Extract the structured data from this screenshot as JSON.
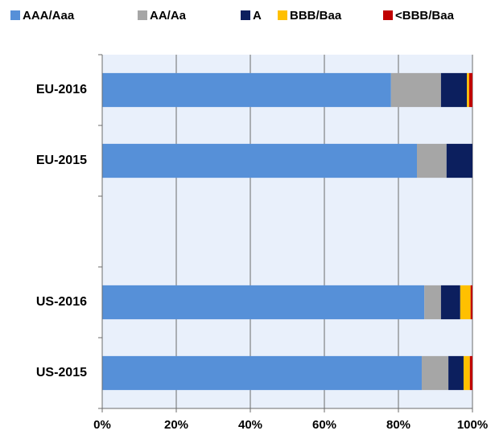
{
  "chart_data": {
    "type": "stacked-barh",
    "categories": [
      "EU-2016",
      "EU-2015",
      null,
      "US-2016",
      "US-2015"
    ],
    "series": [
      {
        "name": "AAA/Aaa",
        "color": "#5690d8",
        "values": [
          78,
          85,
          null,
          87,
          86.3
        ]
      },
      {
        "name": "AA/Aa",
        "color": "#a6a6a6",
        "values": [
          13.5,
          8,
          null,
          4.5,
          7.2
        ]
      },
      {
        "name": "A",
        "color": "#0c1f5e",
        "values": [
          7,
          7,
          null,
          5.2,
          4.1
        ]
      },
      {
        "name": "BBB/Baa",
        "color": "#ffc000",
        "values": [
          0.6,
          0,
          null,
          2.8,
          1.7
        ]
      },
      {
        "name": "<BBB/Baa",
        "color": "#c00000",
        "values": [
          0.9,
          0,
          null,
          0.5,
          0.7
        ]
      }
    ],
    "xlim": [
      0,
      100
    ],
    "xticks": [
      {
        "value": 0,
        "label": "0%"
      },
      {
        "value": 20,
        "label": "20%"
      },
      {
        "value": 40,
        "label": "40%"
      },
      {
        "value": 60,
        "label": "60%"
      },
      {
        "value": 80,
        "label": "80%"
      },
      {
        "value": 100,
        "label": "100%"
      }
    ],
    "grid": true,
    "legend": "top"
  }
}
